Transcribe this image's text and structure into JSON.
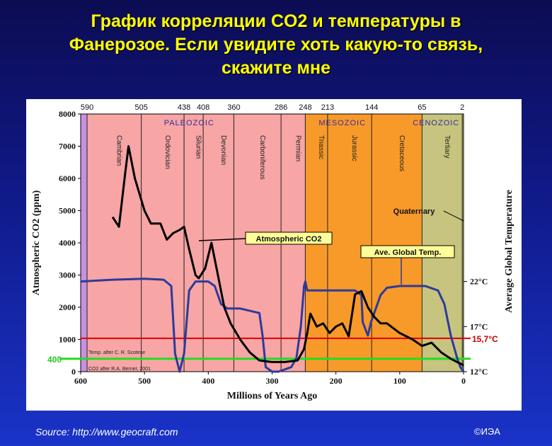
{
  "slide": {
    "title_line1": "График корреляции CO2 и температуры в",
    "title_line2": "Фанерозое. Если увидите хоть какую-то связь,",
    "title_line3": "скажите мне",
    "source": "Source: http://www.geocraft.com",
    "credit": "©ИЭА"
  },
  "colors": {
    "co2_line": "#000000",
    "temp_line": "#2d3a9c",
    "ref_line_red": "#e00000",
    "ref_line_green": "#22dd22"
  },
  "chart_data": {
    "type": "line",
    "xlabel": "Millions of Years Ago",
    "ylabel": "Atmospheric CO2 (ppm)",
    "y2label": "Average Global Temperature",
    "xlim": [
      600,
      0
    ],
    "ylim": [
      0,
      8000
    ],
    "x_ticks": [
      "600",
      "500",
      "400",
      "300",
      "200",
      "100",
      "0"
    ],
    "y_ticks": [
      "0",
      "1000",
      "2000",
      "3000",
      "4000",
      "5000",
      "6000",
      "7000",
      "8000"
    ],
    "temp_ticks": [
      "12°C",
      "17°C",
      "22°C"
    ],
    "top_boundaries": [
      "590",
      "505",
      "438",
      "408",
      "360",
      "286",
      "248",
      "213",
      "144",
      "65",
      "2"
    ],
    "eras": [
      {
        "name": "PALEOZOIC",
        "start": 590,
        "end": 248,
        "color": "#f7a5a5"
      },
      {
        "name": "MESOZOIC",
        "start": 248,
        "end": 65,
        "color": "#f79a2a"
      },
      {
        "name": "CENOZOIC",
        "start": 65,
        "end": 0,
        "color": "#c6c47e"
      }
    ],
    "periods": [
      {
        "name": "Cambrian",
        "start": 590,
        "end": 505
      },
      {
        "name": "Ordovician",
        "start": 505,
        "end": 438
      },
      {
        "name": "Silurian",
        "start": 438,
        "end": 408
      },
      {
        "name": "Devonian",
        "start": 408,
        "end": 360
      },
      {
        "name": "Carboniferous",
        "start": 360,
        "end": 286
      },
      {
        "name": "Permian",
        "start": 286,
        "end": 248
      },
      {
        "name": "Triassic",
        "start": 248,
        "end": 213
      },
      {
        "name": "Jurassic",
        "start": 213,
        "end": 144
      },
      {
        "name": "Cretaceous",
        "start": 144,
        "end": 65
      },
      {
        "name": "Tertiary",
        "start": 65,
        "end": 2
      },
      {
        "name": "Quaternary",
        "start": 2,
        "end": 0
      }
    ],
    "series": [
      {
        "name": "Atmospheric CO2",
        "unit": "ppm",
        "x": [
          550,
          540,
          530,
          525,
          515,
          500,
          490,
          475,
          465,
          455,
          445,
          438,
          430,
          420,
          415,
          405,
          395,
          385,
          375,
          365,
          350,
          335,
          320,
          300,
          280,
          260,
          250,
          245,
          240,
          235,
          230,
          220,
          210,
          200,
          190,
          180,
          170,
          160,
          150,
          140,
          130,
          120,
          100,
          80,
          65,
          50,
          35,
          20,
          10,
          5,
          0
        ],
        "values": [
          4800,
          4500,
          6200,
          7000,
          6000,
          5000,
          4600,
          4600,
          4100,
          4300,
          4400,
          4500,
          3800,
          3000,
          2900,
          3200,
          4000,
          3000,
          2000,
          1500,
          1000,
          600,
          350,
          300,
          300,
          350,
          700,
          1200,
          1800,
          1600,
          1400,
          1500,
          1200,
          1400,
          1500,
          1100,
          2400,
          2500,
          2000,
          1700,
          1500,
          1500,
          1200,
          1000,
          800,
          900,
          600,
          400,
          300,
          250,
          200
        ]
      },
      {
        "name": "Ave. Global Temp.",
        "unit": "°C",
        "x": [
          600,
          550,
          500,
          470,
          458,
          452,
          445,
          438,
          430,
          420,
          400,
          390,
          380,
          370,
          350,
          320,
          315,
          310,
          300,
          290,
          270,
          262,
          255,
          250,
          248,
          245,
          240,
          200,
          170,
          160,
          158,
          150,
          145,
          140,
          130,
          120,
          100,
          80,
          60,
          40,
          30,
          20,
          10,
          5,
          0
        ],
        "values": [
          22,
          22.2,
          22.3,
          22.2,
          21.5,
          14,
          12,
          14,
          21,
          22,
          22,
          21.5,
          19.5,
          19,
          19,
          18.5,
          16,
          12.5,
          12,
          12,
          12.5,
          13.5,
          17,
          21.5,
          22,
          21,
          21,
          21,
          21,
          20.5,
          17.5,
          16,
          17.5,
          18.5,
          20.5,
          21.3,
          21.5,
          21.5,
          21.5,
          21,
          19.5,
          16,
          13.5,
          12.5,
          12
        ]
      }
    ],
    "legend": [
      "Atmospheric CO2",
      "Ave. Global Temp."
    ],
    "annotations": [
      {
        "text": "Atmospheric CO2"
      },
      {
        "text": "Ave. Global Temp."
      },
      {
        "text": "Quaternary"
      },
      {
        "text": "15,7°C"
      },
      {
        "text": "400"
      },
      {
        "text": "Temp. after C. R. Scotese"
      },
      {
        "text": "CO2 after R.A. Berner, 2001"
      }
    ],
    "reference_lines": [
      {
        "label": "15,7°C",
        "axis": "temperature",
        "value": 15.7,
        "color": "#e00000"
      },
      {
        "label": "400",
        "axis": "co2",
        "value": 400,
        "color": "#22dd22"
      }
    ]
  }
}
